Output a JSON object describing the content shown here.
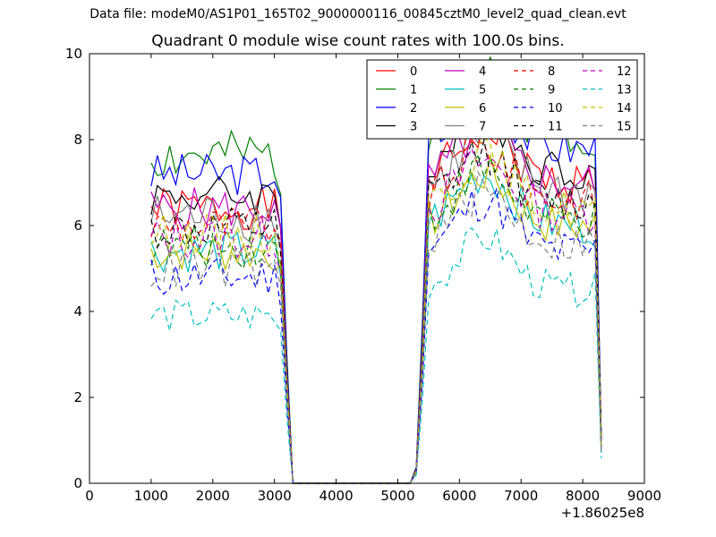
{
  "header": {
    "suptitle": "Data file: modeM0/AS1P01_165T02_9000000116_00845cztM0_level2_quad_clean.evt",
    "title": "Quadrant 0 module wise count rates with 100.0s bins."
  },
  "chart_data": {
    "type": "line",
    "title": "Quadrant 0 module wise count rates with 100.0s bins.",
    "xlabel": "",
    "ylabel": "",
    "x_offset_label": "+1.86025e8",
    "xlim": [
      0,
      9000
    ],
    "ylim": [
      0,
      10
    ],
    "xticks": [
      0,
      1000,
      2000,
      3000,
      4000,
      5000,
      6000,
      7000,
      8000,
      9000
    ],
    "yticks": [
      0,
      2,
      4,
      6,
      8,
      10
    ],
    "legend_loc": "upper right",
    "legend_columns": 4,
    "x": [
      1000,
      1100,
      1200,
      1300,
      1400,
      1500,
      1600,
      1700,
      1800,
      1900,
      2000,
      2100,
      2200,
      2300,
      2400,
      2500,
      2600,
      2700,
      2800,
      2900,
      3000,
      3100,
      3200,
      3300,
      3400,
      3500,
      3600,
      3700,
      3800,
      3900,
      4000,
      4100,
      4200,
      4300,
      4400,
      4500,
      4600,
      4700,
      4800,
      4900,
      5000,
      5100,
      5200,
      5300,
      5400,
      5500,
      5600,
      5700,
      5800,
      5900,
      6000,
      6100,
      6200,
      6300,
      6400,
      6500,
      6600,
      6700,
      6800,
      6900,
      7000,
      7100,
      7200,
      7300,
      7400,
      7500,
      7600,
      7700,
      7800,
      7900,
      8000,
      8100,
      8200,
      8300
    ],
    "series": [
      {
        "name": "0",
        "color": "#ff0000",
        "dash": "solid",
        "profile": "A",
        "level": 6.4,
        "amp": 0.5,
        "seed": 1
      },
      {
        "name": "1",
        "color": "#008000",
        "dash": "solid",
        "profile": "A",
        "level": 7.6,
        "amp": 0.6,
        "seed": 2
      },
      {
        "name": "2",
        "color": "#0000ff",
        "dash": "solid",
        "profile": "A",
        "level": 7.2,
        "amp": 0.5,
        "seed": 3
      },
      {
        "name": "3",
        "color": "#000000",
        "dash": "solid",
        "profile": "A",
        "level": 6.7,
        "amp": 0.5,
        "seed": 4
      },
      {
        "name": "4",
        "color": "#bf00bf",
        "dash": "solid",
        "profile": "A",
        "level": 6.4,
        "amp": 0.5,
        "seed": 5
      },
      {
        "name": "5",
        "color": "#00bfbf",
        "dash": "solid",
        "profile": "A",
        "level": 5.4,
        "amp": 0.5,
        "seed": 6
      },
      {
        "name": "6",
        "color": "#bfbf00",
        "dash": "solid",
        "profile": "A",
        "level": 5.4,
        "amp": 0.5,
        "seed": 7
      },
      {
        "name": "7",
        "color": "#808080",
        "dash": "solid",
        "profile": "A",
        "level": 6.2,
        "amp": 0.6,
        "seed": 8
      },
      {
        "name": "8",
        "color": "#ff0000",
        "dash": "dashed",
        "profile": "A",
        "level": 6.0,
        "amp": 0.5,
        "seed": 9
      },
      {
        "name": "9",
        "color": "#008000",
        "dash": "dashed",
        "profile": "A",
        "level": 5.5,
        "amp": 0.5,
        "seed": 10
      },
      {
        "name": "10",
        "color": "#0000ff",
        "dash": "dashed",
        "profile": "A",
        "level": 4.8,
        "amp": 0.5,
        "seed": 11
      },
      {
        "name": "11",
        "color": "#000000",
        "dash": "dashed",
        "profile": "A",
        "level": 5.9,
        "amp": 0.5,
        "seed": 12
      },
      {
        "name": "12",
        "color": "#bf00bf",
        "dash": "dashed",
        "profile": "A",
        "level": 5.7,
        "amp": 0.5,
        "seed": 13
      },
      {
        "name": "13",
        "color": "#00bfbf",
        "dash": "dashed",
        "profile": "A",
        "level": 3.9,
        "amp": 0.4,
        "seed": 14
      },
      {
        "name": "14",
        "color": "#bfbf00",
        "dash": "dashed",
        "profile": "A",
        "level": 5.8,
        "amp": 0.5,
        "seed": 15
      },
      {
        "name": "15",
        "color": "#808080",
        "dash": "dashed",
        "profile": "A",
        "level": 5.0,
        "amp": 0.5,
        "seed": 16
      }
    ]
  }
}
